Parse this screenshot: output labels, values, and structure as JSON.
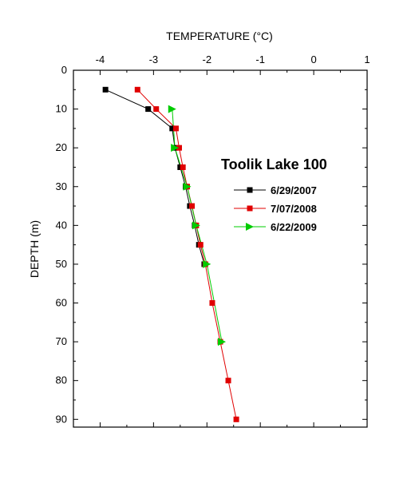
{
  "chart_data": {
    "type": "line",
    "title": "Toolik Lake 100",
    "xlabel": "TEMPERATURE (°C)",
    "ylabel": "DEPTH (m)",
    "xlim": [
      -4.5,
      1
    ],
    "ylim": [
      0,
      92
    ],
    "y_inverted": true,
    "x_axis_position": "top",
    "xticks": [
      -4,
      -3,
      -2,
      -1,
      0,
      1
    ],
    "yticks": [
      0,
      10,
      20,
      30,
      40,
      50,
      60,
      70,
      80,
      90
    ],
    "grid": false,
    "legend_position": "right-middle",
    "series": [
      {
        "name": "6/29/2007",
        "color": "#000000",
        "marker": "square",
        "points": [
          {
            "temp": -3.9,
            "depth": 5
          },
          {
            "temp": -3.1,
            "depth": 10
          },
          {
            "temp": -2.65,
            "depth": 15
          },
          {
            "temp": -2.6,
            "depth": 20
          },
          {
            "temp": -2.5,
            "depth": 25
          },
          {
            "temp": -2.4,
            "depth": 30
          },
          {
            "temp": -2.32,
            "depth": 35
          },
          {
            "temp": -2.23,
            "depth": 40
          },
          {
            "temp": -2.15,
            "depth": 45
          },
          {
            "temp": -2.05,
            "depth": 50
          }
        ]
      },
      {
        "name": "7/07/2008",
        "color": "#e00000",
        "marker": "square",
        "points": [
          {
            "temp": -3.3,
            "depth": 5
          },
          {
            "temp": -2.95,
            "depth": 10
          },
          {
            "temp": -2.58,
            "depth": 15
          },
          {
            "temp": -2.52,
            "depth": 20
          },
          {
            "temp": -2.45,
            "depth": 25
          },
          {
            "temp": -2.37,
            "depth": 30
          },
          {
            "temp": -2.28,
            "depth": 35
          },
          {
            "temp": -2.2,
            "depth": 40
          },
          {
            "temp": -2.12,
            "depth": 45
          },
          {
            "temp": -2.03,
            "depth": 50
          },
          {
            "temp": -1.9,
            "depth": 60
          },
          {
            "temp": -1.75,
            "depth": 70
          },
          {
            "temp": -1.6,
            "depth": 80
          },
          {
            "temp": -1.45,
            "depth": 90
          }
        ]
      },
      {
        "name": "6/22/2009",
        "color": "#00cc00",
        "marker": "triangle-right",
        "points": [
          {
            "temp": -2.65,
            "depth": 10
          },
          {
            "temp": -2.6,
            "depth": 20
          },
          {
            "temp": -2.37,
            "depth": 30
          },
          {
            "temp": -2.2,
            "depth": 40
          },
          {
            "temp": -2.0,
            "depth": 50
          },
          {
            "temp": -1.72,
            "depth": 70
          }
        ]
      }
    ]
  }
}
